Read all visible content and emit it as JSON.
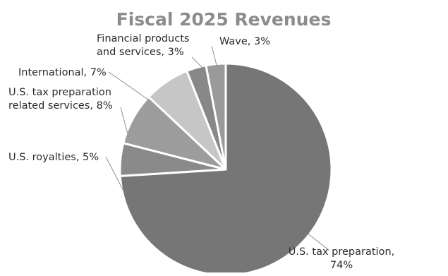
{
  "chart_data": {
    "type": "pie",
    "title": "Fiscal 2025 Revenues",
    "start_angle_deg": 0,
    "direction": "clockwise",
    "slices": [
      {
        "name": "U.S. tax preparation",
        "value": 74,
        "label_lines": [
          "U.S. tax preparation,",
          "74%"
        ],
        "color": "#767676"
      },
      {
        "name": "U.S. royalties",
        "value": 5,
        "label_lines": [
          "U.S. royalties, 5%"
        ],
        "color": "#8a8a8a"
      },
      {
        "name": "U.S. tax preparation related services",
        "value": 8,
        "label_lines": [
          "U.S. tax preparation",
          "related services, 8%"
        ],
        "color": "#9c9c9c"
      },
      {
        "name": "International",
        "value": 7,
        "label_lines": [
          "International, 7%"
        ],
        "color": "#c6c6c6"
      },
      {
        "name": "Financial products and services",
        "value": 3,
        "label_lines": [
          "Financial products",
          "and services, 3%"
        ],
        "color": "#888888"
      },
      {
        "name": "Wave",
        "value": 3,
        "label_lines": [
          "Wave, 3%"
        ],
        "color": "#9a9a9a"
      }
    ],
    "legend": "none",
    "data_labels": "outside-with-leader-lines"
  }
}
